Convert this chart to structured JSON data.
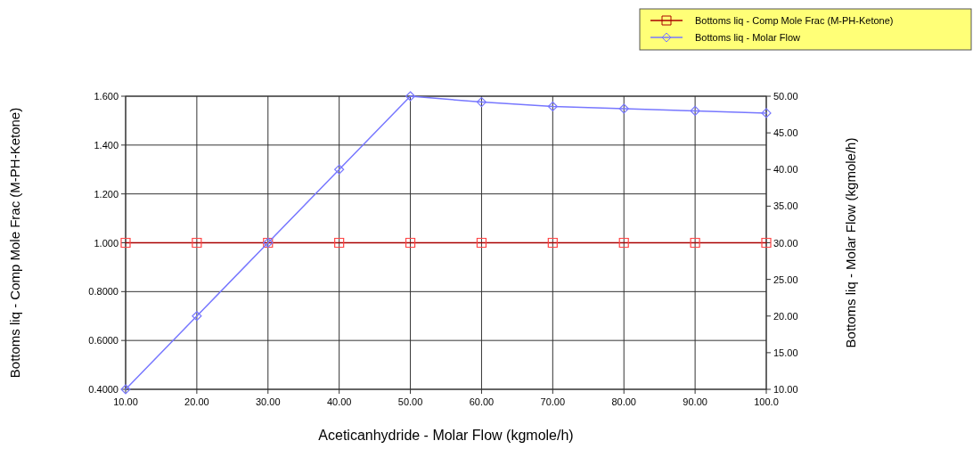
{
  "chart_data": {
    "type": "line",
    "xlabel": "Aceticanhydride - Molar Flow (kgmole/h)",
    "ylabel": "Bottoms liq - Comp Mole Frac (M-PH-Ketone)",
    "y2label": "Bottoms liq - Molar Flow (kgmole/h)",
    "x": [
      10,
      20,
      30,
      40,
      50,
      60,
      70,
      80,
      90,
      100
    ],
    "series": [
      {
        "name": "Bottoms liq - Comp Mole Frac (M-PH-Ketone)",
        "color": "#aa0000",
        "marker": "square",
        "values": [
          1,
          1,
          1,
          1,
          1,
          1,
          1,
          1,
          1,
          1
        ]
      },
      {
        "name": "Bottoms liq - Molar Flow",
        "color": "#7777ff",
        "marker": "diamond",
        "axis": "y2",
        "values": [
          10,
          20,
          30,
          40,
          50,
          49.2,
          48.6,
          48.3,
          48.0,
          47.7
        ]
      }
    ],
    "xlim": [
      10,
      100
    ],
    "xticks": [
      {
        "value": 10,
        "label": "10.00"
      },
      {
        "value": 20,
        "label": "20.00"
      },
      {
        "value": 30,
        "label": "30.00"
      },
      {
        "value": 40,
        "label": "40.00"
      },
      {
        "value": 50,
        "label": "50.00"
      },
      {
        "value": 60,
        "label": "60.00"
      },
      {
        "value": 70,
        "label": "70.00"
      },
      {
        "value": 80,
        "label": "80.00"
      },
      {
        "value": 90,
        "label": "90.00"
      },
      {
        "value": 100,
        "label": "100.0"
      }
    ],
    "ylim": [
      0.4,
      1.6
    ],
    "yticks": [
      {
        "value": 0.4,
        "label": "0.4000"
      },
      {
        "value": 0.6,
        "label": "0.6000"
      },
      {
        "value": 0.8,
        "label": "0.8000"
      },
      {
        "value": 1,
        "label": "1.000"
      },
      {
        "value": 1.2,
        "label": "1.200"
      },
      {
        "value": 1.4,
        "label": "1.400"
      },
      {
        "value": 1.6,
        "label": "1.600"
      }
    ],
    "y2lim": [
      10,
      50
    ],
    "y2ticks": [
      {
        "value": 10,
        "label": "10.00"
      },
      {
        "value": 15,
        "label": "15.00"
      },
      {
        "value": 20,
        "label": "20.00"
      },
      {
        "value": 25,
        "label": "25.00"
      },
      {
        "value": 30,
        "label": "30.00"
      },
      {
        "value": 35,
        "label": "35.00"
      },
      {
        "value": 40,
        "label": "40.00"
      },
      {
        "value": 45,
        "label": "45.00"
      },
      {
        "value": 50,
        "label": "50.00"
      }
    ],
    "grid": true,
    "legend": "top right",
    "line_style": "solid"
  }
}
